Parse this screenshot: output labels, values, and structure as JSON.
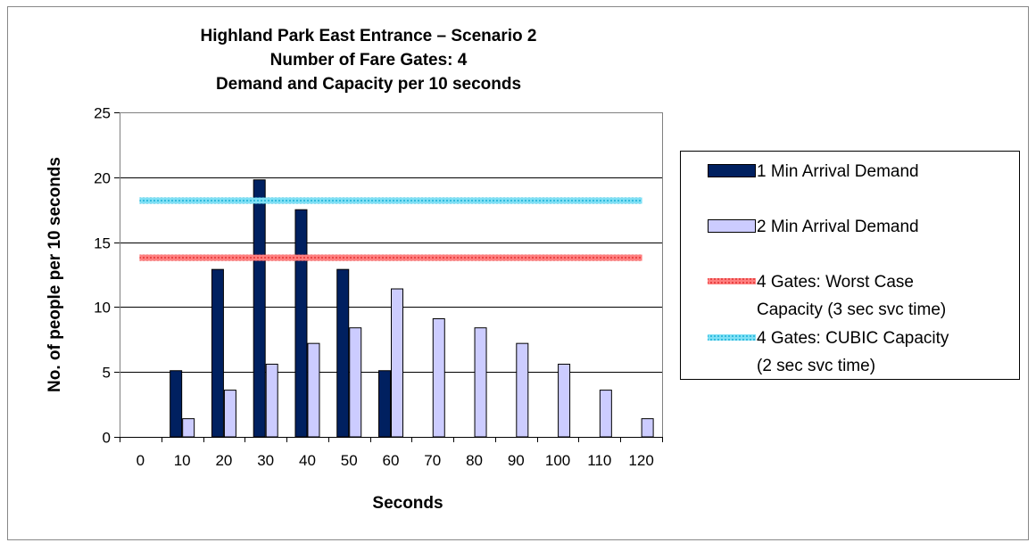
{
  "chart_data": {
    "type": "bar",
    "title_lines": [
      "Highland Park East Entrance – Scenario 2",
      "Number of Fare Gates: 4",
      "Demand and Capacity per 10 seconds"
    ],
    "xlabel": "Seconds",
    "ylabel": "No. of people per 10 seconds",
    "ylim": [
      0,
      25
    ],
    "yticks": [
      0,
      5,
      10,
      15,
      20,
      25
    ],
    "grid": true,
    "legend_position": "right",
    "categories": [
      "0",
      "10",
      "20",
      "30",
      "40",
      "50",
      "60",
      "70",
      "80",
      "90",
      "100",
      "110",
      "120"
    ],
    "series": [
      {
        "name": "1 Min Arrival Demand",
        "kind": "bar",
        "color": "#002060",
        "values": [
          0,
          5.1,
          12.9,
          19.8,
          17.5,
          12.9,
          5.1,
          0,
          0,
          0,
          0,
          0,
          0
        ]
      },
      {
        "name": "2 Min Arrival Demand",
        "kind": "bar",
        "color": "#CCCCFF",
        "values": [
          0,
          1.4,
          3.6,
          5.6,
          7.2,
          8.4,
          11.4,
          9.1,
          8.4,
          7.2,
          5.6,
          3.6,
          1.4
        ]
      },
      {
        "name": "4 Gates: Worst Case Capacity (3 sec svc time)",
        "legend_lines": [
          "4 Gates: Worst Case",
          "Capacity (3 sec svc time)"
        ],
        "kind": "line",
        "color": "#FF7F7F",
        "value": 13.8
      },
      {
        "name": "4 Gates: CUBIC Capacity (2 sec svc time)",
        "legend_lines": [
          "4 Gates: CUBIC Capacity",
          "(2 sec svc time)"
        ],
        "kind": "line",
        "color": "#7FD4F0",
        "value": 18.2
      }
    ]
  }
}
